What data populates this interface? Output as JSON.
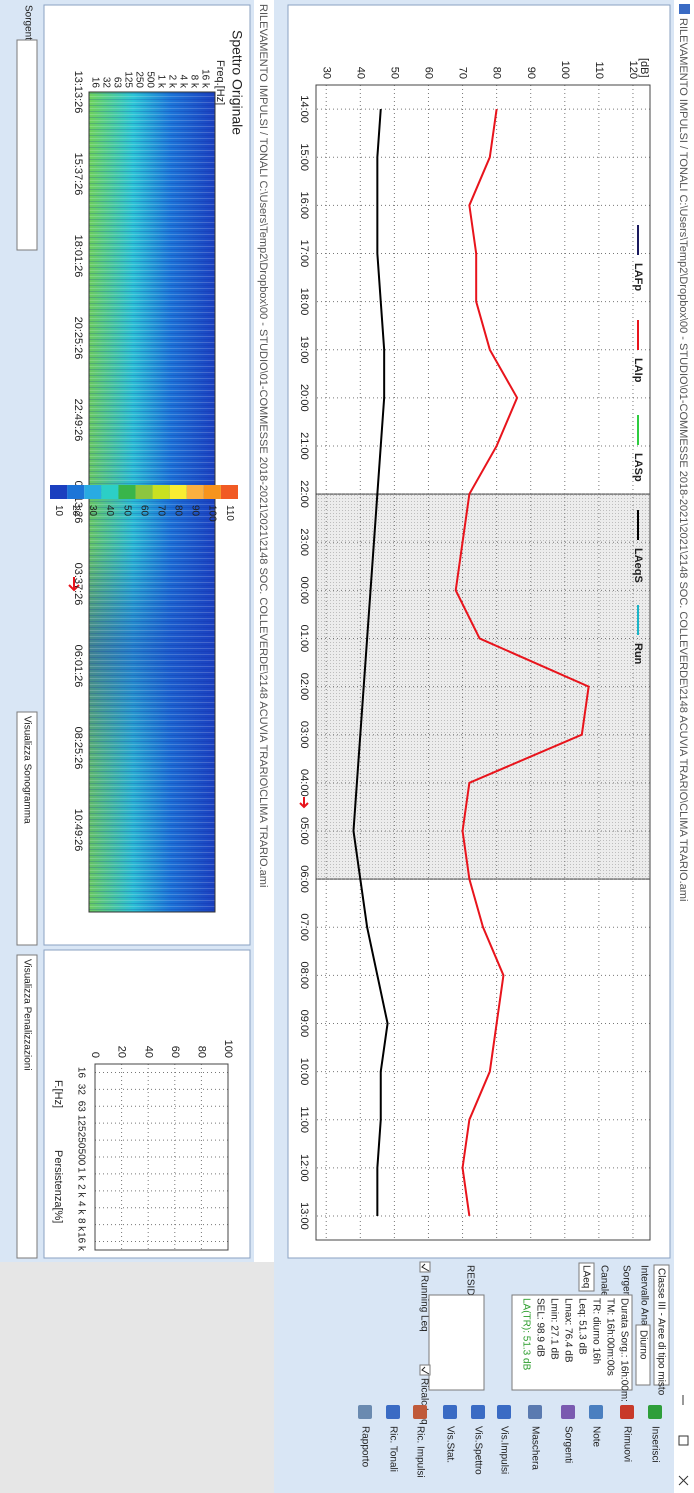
{
  "window": {
    "title": "RILEVAMENTO IMPULSI / TONALI C:\\Users\\Temp2\\Dropbox\\00 - STUDIO\\01-COMMESSE 2018-2021\\2021\\2148 SOC. COLLEVERDE\\2148 ACUVIA TRARIO\\CLIMA TRARIO.ami"
  },
  "chart_data": [
    {
      "type": "line",
      "ylabel": "[dB]",
      "categories": [
        "14:00",
        "15:00",
        "16:00",
        "17:00",
        "18:00",
        "19:00",
        "20:00",
        "21:00",
        "22:00",
        "23:00",
        "00:00",
        "01:00",
        "02:00",
        "03:00",
        "04:00",
        "05:00",
        "06:00",
        "07:00",
        "08:00",
        "09:00",
        "10:00",
        "11:00",
        "12:00",
        "13:00"
      ],
      "series": [
        {
          "name": "LAFp",
          "color": "#1a1a5e",
          "values": [
            null,
            null,
            null,
            null,
            null,
            null,
            null,
            null,
            null,
            null,
            null,
            null,
            null,
            null,
            null,
            null,
            null,
            null,
            null,
            null,
            null,
            null,
            null,
            null
          ]
        },
        {
          "name": "LAIp",
          "color": "#e8141c",
          "values": [
            80,
            78,
            72,
            74,
            74,
            78,
            86,
            80,
            72,
            70,
            68,
            75,
            107,
            105,
            72,
            70,
            72,
            76,
            82,
            80,
            78,
            72,
            70,
            72
          ]
        },
        {
          "name": "LASp",
          "color": "#2ecc40",
          "values": [
            null,
            null,
            null,
            null,
            null,
            null,
            null,
            null,
            null,
            null,
            null,
            null,
            null,
            null,
            null,
            null,
            null,
            null,
            null,
            null,
            null,
            null,
            null,
            null
          ]
        },
        {
          "name": "LAeqS",
          "color": "#000000",
          "values": [
            46,
            45,
            45,
            45,
            46,
            47,
            47,
            46,
            45,
            44,
            43,
            42,
            41,
            40,
            39,
            38,
            40,
            42,
            45,
            48,
            46,
            46,
            45,
            45
          ]
        },
        {
          "name": "Run",
          "color": "#19b5c8",
          "values": [
            null,
            null,
            null,
            null,
            null,
            null,
            null,
            null,
            null,
            null,
            null,
            null,
            null,
            null,
            null,
            null,
            null,
            null,
            null,
            null,
            null,
            null,
            null,
            null
          ]
        }
      ],
      "ylim": [
        27,
        125
      ],
      "yticks": [
        30,
        40,
        50,
        60,
        70,
        80,
        90,
        100,
        110,
        120
      ],
      "grid": true,
      "shaded": [
        "22:00",
        "06:00"
      ]
    },
    {
      "type": "bar",
      "xlabel": "F.[Hz]",
      "ylabel": "Persistenza[%]",
      "categories": [
        "16",
        "32",
        "63",
        "125",
        "250",
        "500",
        "1 k",
        "2 k",
        "4 k",
        "8 k",
        "16 k"
      ],
      "ylim": [
        0,
        100
      ],
      "yticks": [
        0,
        20,
        40,
        60,
        80,
        100
      ],
      "grid": true
    }
  ],
  "spectrum": {
    "title": "Spettro Originale",
    "freq_label": "Freq.[Hz]",
    "freqs": [
      "16 k",
      "8 k",
      "4 k",
      "2 k",
      "1 k",
      "500",
      "250",
      "125",
      "63",
      "32",
      "16"
    ],
    "times": [
      "13:13:26",
      "15:37:26",
      "18:01:26",
      "20:25:26",
      "22:49:26",
      "01:13:26",
      "03:37:26",
      "06:01:26",
      "08:25:26",
      "10:49:26"
    ],
    "colorbar": [
      110,
      100,
      90,
      80,
      70,
      60,
      50,
      40,
      30,
      20,
      10
    ],
    "colorbar_colors": [
      "#f15a24",
      "#f7941d",
      "#fbb040",
      "#f9ed32",
      "#c9e021",
      "#8dc63f",
      "#39b54a",
      "#2ccfc6",
      "#29abe2",
      "#1c75d8",
      "#1b3fbf"
    ]
  },
  "panel": {
    "classe": "Classe III - Aree di tipo misto",
    "intervallo_label": "Intervallo Analisi",
    "intervallo": "Diurno",
    "sorgente_label": "Sorgente",
    "canale_label": "Canale",
    "canale": "LAeq",
    "info": [
      "Durata Sorg.: 16h:00m:",
      "TM: 16h:00m:00s",
      "TR: diurno 16h",
      "Leq: 51.3 dB",
      "Lmax: 76.4 dB",
      "Lmin: 27.1 dB",
      "SEL: 98.9 dB",
      "LA(TR): 51.3 dB"
    ],
    "residuo": "RESIDUO",
    "running": "Running Leq",
    "ricalc": "Ricalc.Leq",
    "buttons": [
      "Inserisci",
      "Rimuovi",
      "Note",
      "Sorgenti",
      "Maschera",
      "Vis.Impulsi",
      "Vis.Spettro",
      "Vis.Stat.",
      "Ric. Impulsi",
      "Ric. Tonali",
      "Rapporto"
    ]
  },
  "footer": {
    "sorgente": "Sorgente",
    "sonogramma": "Visualizza Sonogramma",
    "penalizzazioni": "Visualizza Penalizzazioni"
  }
}
